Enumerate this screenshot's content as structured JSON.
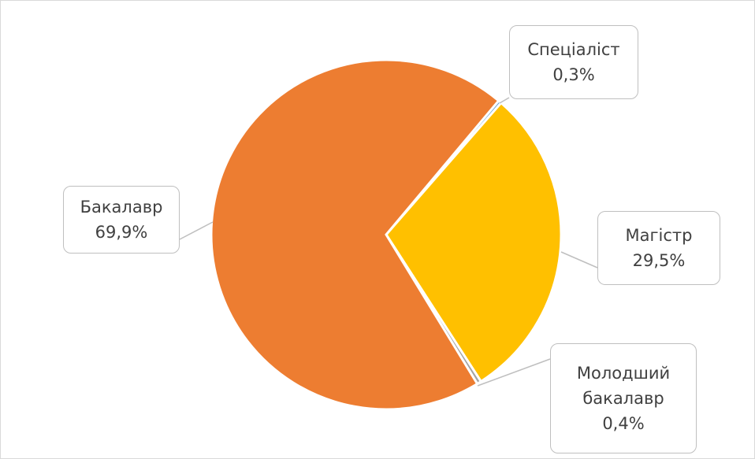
{
  "chart_data": {
    "type": "pie",
    "categories": [
      "Спеціаліст",
      "Магістр",
      "Молодший бакалавр",
      "Бакалавр"
    ],
    "values": [
      0.3,
      29.5,
      0.4,
      69.9
    ],
    "value_labels": [
      "0,3%",
      "29,5%",
      "0,4%",
      "69,9%"
    ],
    "colors": [
      "#5b9bd5",
      "#ffc000",
      "#a5a5a5",
      "#ed7d31"
    ]
  }
}
